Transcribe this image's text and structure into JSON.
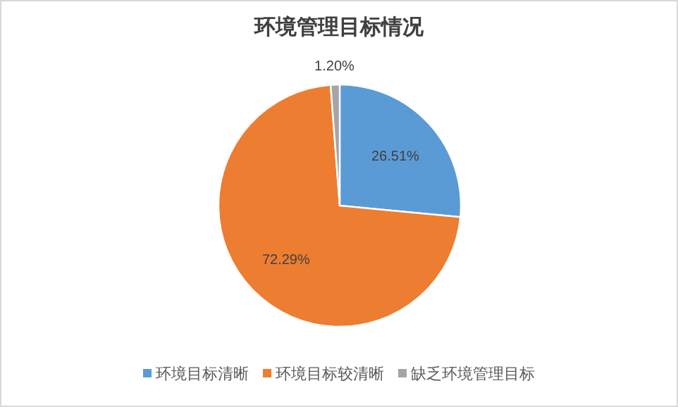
{
  "chart_data": {
    "type": "pie",
    "title": "环境管理目标情况",
    "categories": [
      "环境目标清晰",
      "环境目标较清晰",
      "缺乏环境管理目标"
    ],
    "values": [
      26.51,
      72.29,
      1.2
    ],
    "colors": [
      "#5b9bd5",
      "#ed7d31",
      "#a5a5a5"
    ],
    "value_labels": [
      "26.51%",
      "72.29%",
      "1.20%"
    ],
    "legend": "bottom"
  }
}
